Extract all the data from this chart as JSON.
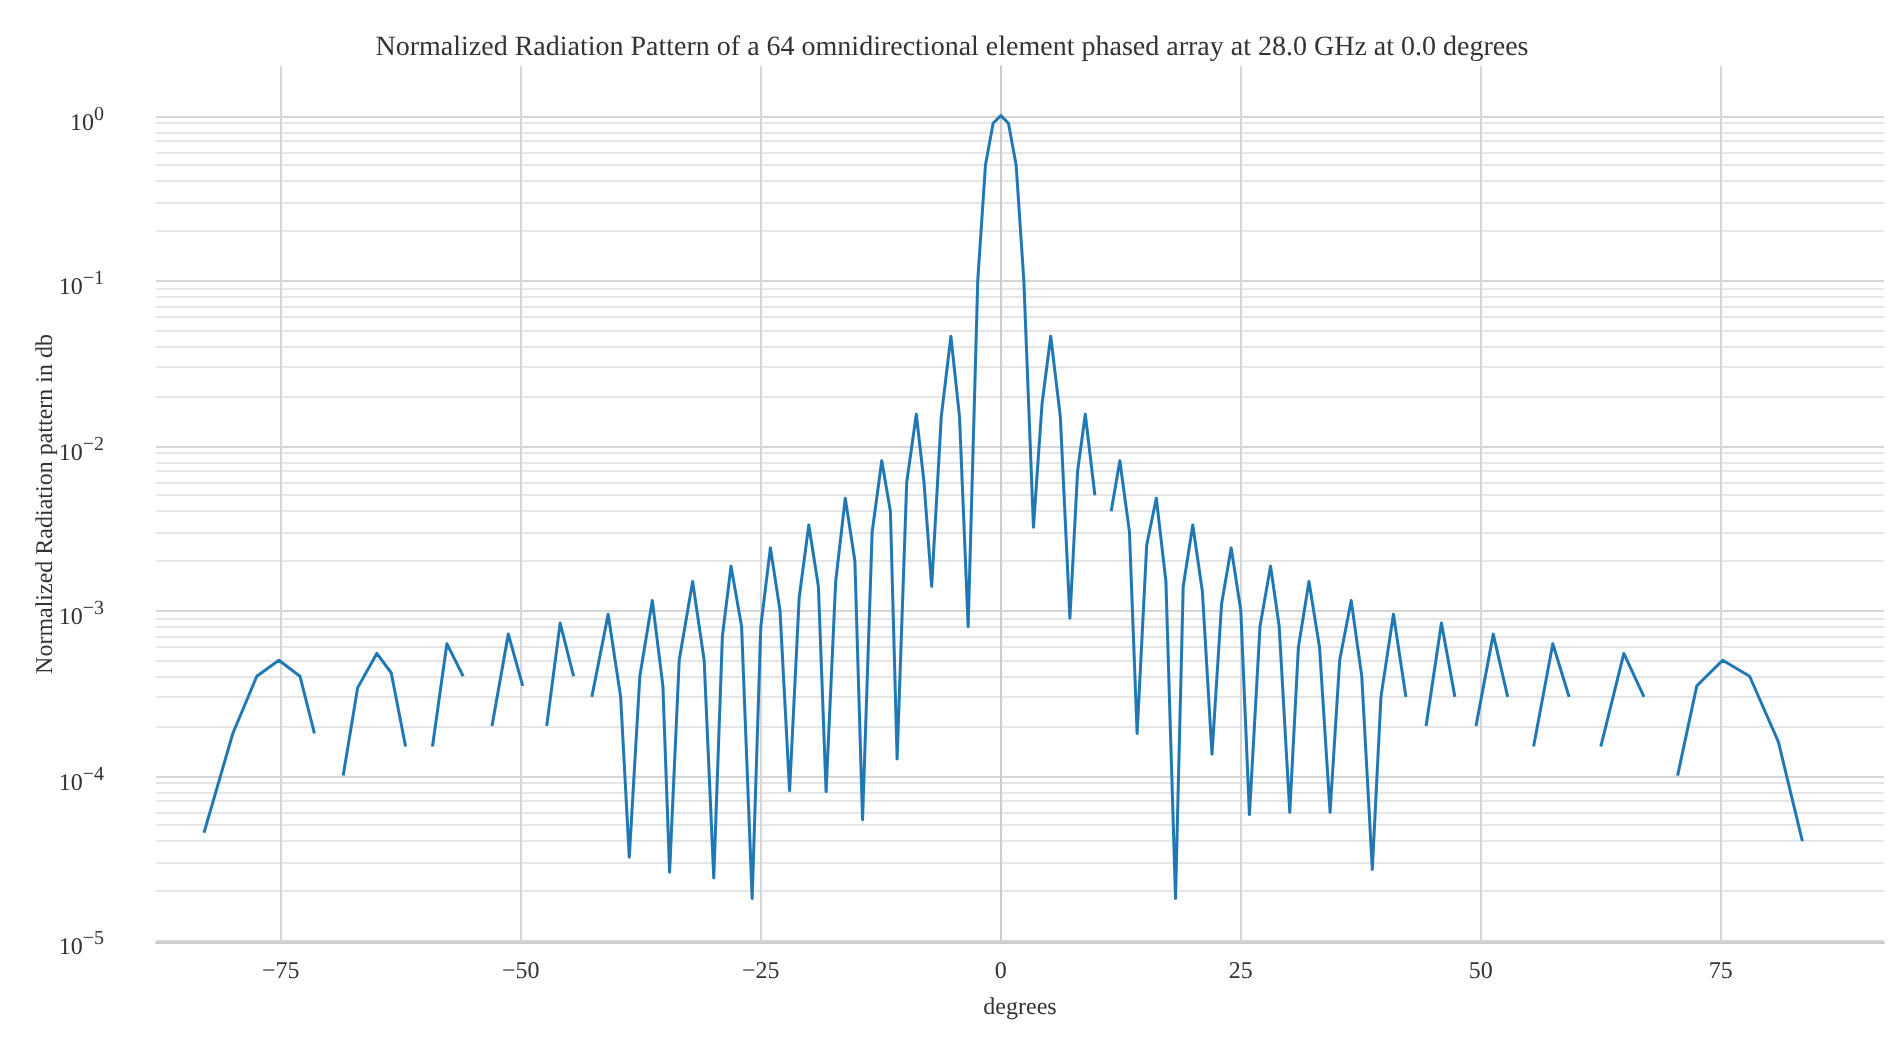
{
  "chart_data": {
    "type": "line",
    "title": "Normalized Radiation Pattern of a 64 omnidirectional element phased array at 28.0 GHz at 0.0 degrees",
    "xlabel": "degrees",
    "ylabel": "Normalized Radiation pattern in db",
    "log": "y",
    "grid": true,
    "xlim": [
      -88,
      92
    ],
    "ylim": [
      9.8e-06,
      2
    ],
    "xticks": [
      {
        "value": -75,
        "label": "−75"
      },
      {
        "value": -50,
        "label": "−50"
      },
      {
        "value": -25,
        "label": "−25"
      },
      0,
      25,
      50,
      75
    ],
    "yticks": [
      {
        "value": 1e-05,
        "label": "10$^{−5}$"
      },
      {
        "value": 0.0001,
        "label": "10$^{−4}$"
      },
      {
        "value": 0.001,
        "label": "10$^{−3}$"
      },
      {
        "value": 0.01,
        "label": "10$^{−2}$"
      },
      {
        "value": 0.1,
        "label": "10$^{−1}$"
      },
      {
        "value": 1,
        "label": "10$^{0}$"
      }
    ],
    "x": [
      -83,
      -80,
      -77.5,
      -75.2,
      -73,
      -71.5,
      -70.3,
      -69.5,
      -68.5,
      -67,
      -65,
      -63.5,
      -62,
      -61,
      -60,
      -59.2,
      -57.7,
      -56,
      -55,
      -53.8,
      -53,
      -51.3,
      -49.8,
      -48.7,
      -47.3,
      -45.9,
      -44.5,
      -43.6,
      -42.6,
      -40.9,
      -39.6,
      -38.7,
      -37.6,
      -36.3,
      -35.2,
      -34.5,
      -33.5,
      -32.1,
      -30.9,
      -29.9,
      -29,
      -28.1,
      -27,
      -25.9,
      -25,
      -24.0,
      -23,
      -22.0,
      -21,
      -20.0,
      -19,
      -18.2,
      -17.2,
      -16.2,
      -15.2,
      -14.4,
      -13.4,
      -12.4,
      -11.5,
      -10.8,
      -9.8,
      -8.8,
      -8,
      -7.2,
      -6.2,
      -5.2,
      -4.3,
      -3.4,
      -2.4,
      -1.6,
      -0.8,
      0,
      0.8,
      1.6,
      2.4,
      3.4,
      4.3,
      5.2,
      6.2,
      7.2,
      8,
      8.8,
      9.8,
      10.8,
      11.5,
      12.4,
      13.4,
      14.2,
      15.2,
      16.2,
      17.2,
      18.2,
      19,
      20.0,
      21,
      22.0,
      23,
      24.0,
      25,
      25.9,
      27,
      28.1,
      29,
      30.1,
      31,
      32.1,
      33.2,
      34.3,
      35.3,
      36.5,
      37.6,
      38.7,
      39.6,
      40.9,
      42.2,
      43.5,
      44.3,
      45.9,
      47.3,
      48.5,
      49.5,
      51.3,
      52.8,
      54.3,
      55.5,
      57.5,
      59.2,
      60.8,
      62.5,
      64.9,
      67,
      69.2,
      70.5,
      72.5,
      75.2,
      78,
      81,
      83.5
    ],
    "series": [
      {
        "color": "#1f77b4",
        "values": [
          4.5e-05,
          0.00018,
          0.0004,
          0.0005,
          0.0004,
          0.00018,
          null,
          null,
          0.0001,
          0.00034,
          0.00055,
          0.00042,
          0.00015,
          null,
          null,
          0.00015,
          0.00063,
          0.0004,
          null,
          null,
          0.0002,
          0.00072,
          0.00035,
          null,
          0.0002,
          0.00084,
          0.0004,
          null,
          0.0003,
          0.00095,
          0.0003,
          3.2e-05,
          0.0004,
          0.00115,
          0.00035,
          2.6e-05,
          0.0005,
          0.0015,
          0.0005,
          2.4e-05,
          0.0007,
          0.00186,
          0.0008,
          1.8e-05,
          0.0008,
          0.0024,
          0.001,
          8.1e-05,
          0.0012,
          0.0033,
          0.0014,
          8e-05,
          0.0015,
          0.0048,
          0.002,
          5.4e-05,
          0.003,
          0.0081,
          0.004,
          0.000126,
          0.006,
          0.0155,
          0.006,
          0.0014,
          0.015,
          0.046,
          0.015,
          0.0008,
          0.1,
          0.5,
          0.9,
          1,
          0.9,
          0.5,
          0.1,
          0.0032,
          0.018,
          0.046,
          0.015,
          0.0009,
          0.007,
          0.0155,
          0.005,
          null,
          0.004,
          0.0081,
          0.003,
          0.00018,
          0.0025,
          0.0048,
          0.0015,
          1.8e-05,
          0.0014,
          0.0033,
          0.0013,
          0.000135,
          0.0011,
          0.0024,
          0.001,
          5.8e-05,
          0.0008,
          0.00186,
          0.0008,
          6e-05,
          0.0006,
          0.0015,
          0.0006,
          6e-05,
          0.0005,
          0.00115,
          0.0004,
          2.7e-05,
          0.0003,
          0.00095,
          0.0003,
          null,
          0.0002,
          0.00084,
          0.0003,
          null,
          0.0002,
          0.00072,
          0.0003,
          null,
          0.00015,
          0.00063,
          0.0003,
          null,
          0.00015,
          0.00055,
          0.0003,
          null,
          0.0001,
          0.00035,
          0.0005,
          0.0004,
          0.00016,
          4e-05
        ]
      }
    ]
  }
}
